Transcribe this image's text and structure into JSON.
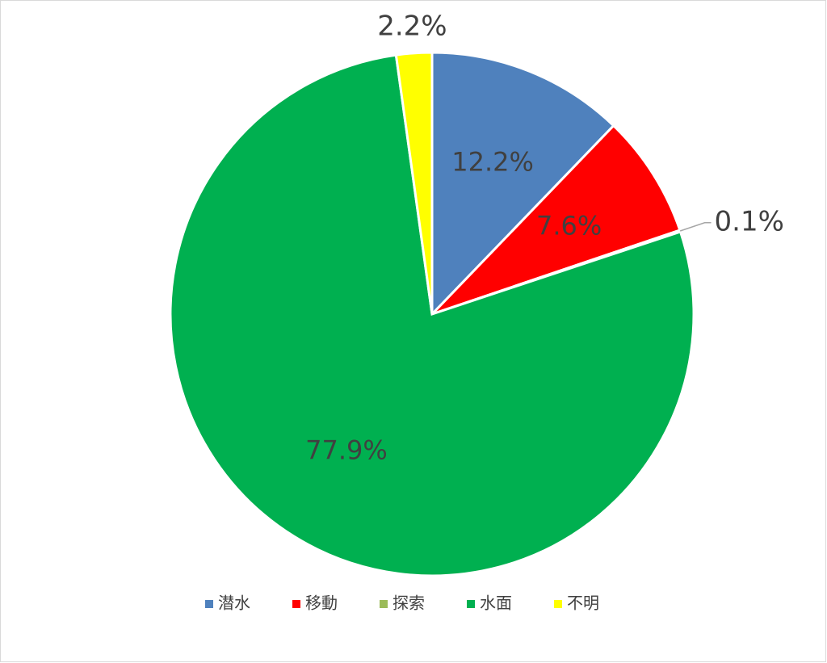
{
  "chart_data": {
    "type": "pie",
    "categories": [
      "潜水",
      "移動",
      "探索",
      "水面",
      "不明"
    ],
    "values": [
      12.2,
      7.6,
      0.1,
      77.9,
      2.2
    ],
    "value_labels": [
      "12.2%",
      "7.6%",
      "0.1%",
      "77.9%",
      "2.2%"
    ],
    "colors": [
      "#4f81bd",
      "#ff0000",
      "#9bbb59",
      "#00b050",
      "#ffff00"
    ],
    "legend": "bottom"
  }
}
